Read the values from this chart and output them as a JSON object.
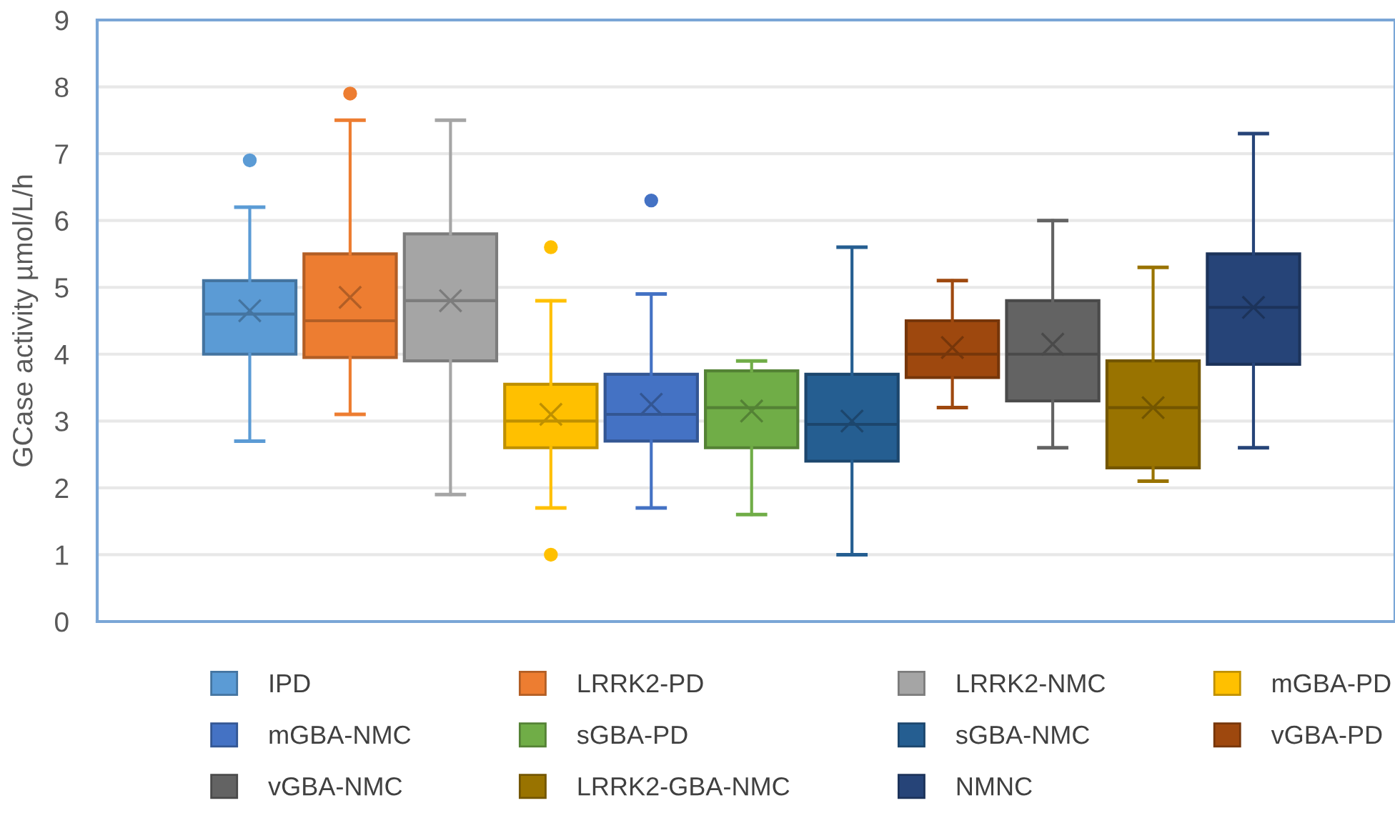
{
  "chart_data": {
    "type": "box",
    "ylabel": "GCase activity µmol/L/h",
    "categories": [
      null
    ],
    "ylim": [
      0,
      9
    ],
    "yticks": [
      0,
      1,
      2,
      3,
      4,
      5,
      6,
      7,
      8,
      9
    ],
    "grid": "y",
    "legend": "bottom",
    "tick_labels": "y",
    "marker": "cross",
    "series": [
      {
        "name": "IPD",
        "color": "#5b9bd5",
        "boxes": [
          {
            "low": 2.7,
            "q1": 4.0,
            "median": 4.6,
            "q3": 5.1,
            "high": 6.2,
            "mean": 4.65,
            "outliers": [
              6.9
            ]
          }
        ]
      },
      {
        "name": "LRRK2-PD",
        "color": "#ed7d31",
        "boxes": [
          {
            "low": 3.1,
            "q1": 3.95,
            "median": 4.5,
            "q3": 5.5,
            "high": 7.5,
            "mean": 4.85,
            "outliers": [
              7.9
            ]
          }
        ]
      },
      {
        "name": "LRRK2-NMC",
        "color": "#a5a5a5",
        "boxes": [
          {
            "low": 1.9,
            "q1": 3.9,
            "median": 4.8,
            "q3": 5.8,
            "high": 7.5,
            "mean": 4.8
          }
        ]
      },
      {
        "name": "mGBA-PD",
        "color": "#ffc000",
        "boxes": [
          {
            "low": 1.7,
            "q1": 2.6,
            "median": 3.0,
            "q3": 3.55,
            "high": 4.8,
            "mean": 3.1,
            "outliers": [
              5.6,
              1.0
            ]
          }
        ]
      },
      {
        "name": "mGBA-NMC",
        "color": "#4472c4",
        "boxes": [
          {
            "low": 1.7,
            "q1": 2.7,
            "median": 3.1,
            "q3": 3.7,
            "high": 4.9,
            "mean": 3.25,
            "outliers": [
              6.3
            ]
          }
        ]
      },
      {
        "name": "sGBA-PD",
        "color": "#70ad47",
        "boxes": [
          {
            "low": 1.6,
            "q1": 2.6,
            "median": 3.2,
            "q3": 3.75,
            "high": 3.9,
            "mean": 3.15
          }
        ]
      },
      {
        "name": "sGBA-NMC",
        "color": "#255e91",
        "boxes": [
          {
            "low": 1.0,
            "q1": 2.4,
            "median": 2.95,
            "q3": 3.7,
            "high": 5.6,
            "mean": 3.0
          }
        ]
      },
      {
        "name": "vGBA-PD",
        "color": "#9e480e",
        "boxes": [
          {
            "low": 3.2,
            "q1": 3.65,
            "median": 4.0,
            "q3": 4.5,
            "high": 5.1,
            "mean": 4.1
          }
        ]
      },
      {
        "name": "vGBA-NMC",
        "color": "#636363",
        "boxes": [
          {
            "low": 2.6,
            "q1": 3.3,
            "median": 4.0,
            "q3": 4.8,
            "high": 6.0,
            "mean": 4.15
          }
        ]
      },
      {
        "name": "LRRK2-GBA-NMC",
        "color": "#997300",
        "boxes": [
          {
            "low": 2.1,
            "q1": 2.3,
            "median": 3.2,
            "q3": 3.9,
            "high": 5.3,
            "mean": 3.2
          }
        ]
      },
      {
        "name": "NMNC",
        "color": "#264478",
        "boxes": [
          {
            "low": 2.6,
            "q1": 3.85,
            "median": 4.7,
            "q3": 5.5,
            "high": 7.3,
            "mean": 4.7
          }
        ]
      }
    ]
  }
}
